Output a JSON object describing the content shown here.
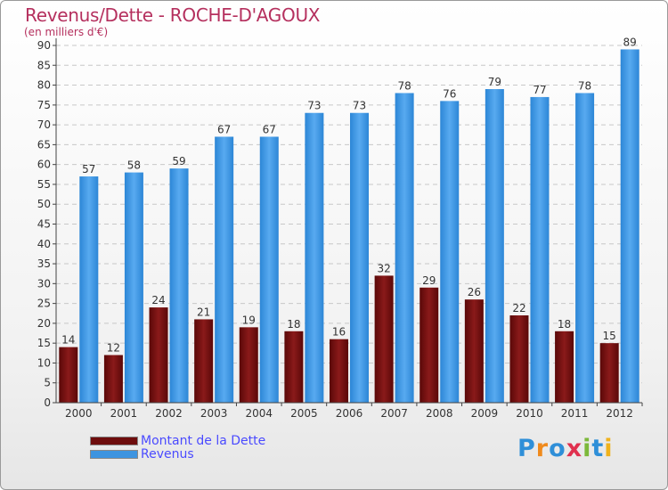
{
  "chart_data": {
    "type": "bar",
    "title": "Revenus/Dette - ROCHE-D'AGOUX",
    "subtitle": "(en milliers d'€)",
    "categories": [
      "2000",
      "2001",
      "2002",
      "2003",
      "2004",
      "2005",
      "2006",
      "2007",
      "2008",
      "2009",
      "2010",
      "2011",
      "2012"
    ],
    "series": [
      {
        "name": "Montant de la Dette",
        "color": "#6e0d0d",
        "values": [
          14,
          12,
          24,
          21,
          19,
          18,
          16,
          32,
          29,
          26,
          22,
          18,
          15
        ]
      },
      {
        "name": "Revenus",
        "color": "#3d94e0",
        "values": [
          57,
          58,
          59,
          67,
          67,
          73,
          73,
          78,
          76,
          79,
          77,
          78,
          89
        ]
      }
    ],
    "ylim": [
      0,
      90
    ],
    "ytick_step": 5,
    "grid": true,
    "legend_position": "bottom-left"
  },
  "logo": {
    "text": "Proxiti",
    "colors": [
      "#2f8fd8",
      "#f08a1c",
      "#2f8fd8",
      "#e0304e",
      "#7cb83a",
      "#2f8fd8",
      "#f0b21c"
    ]
  }
}
